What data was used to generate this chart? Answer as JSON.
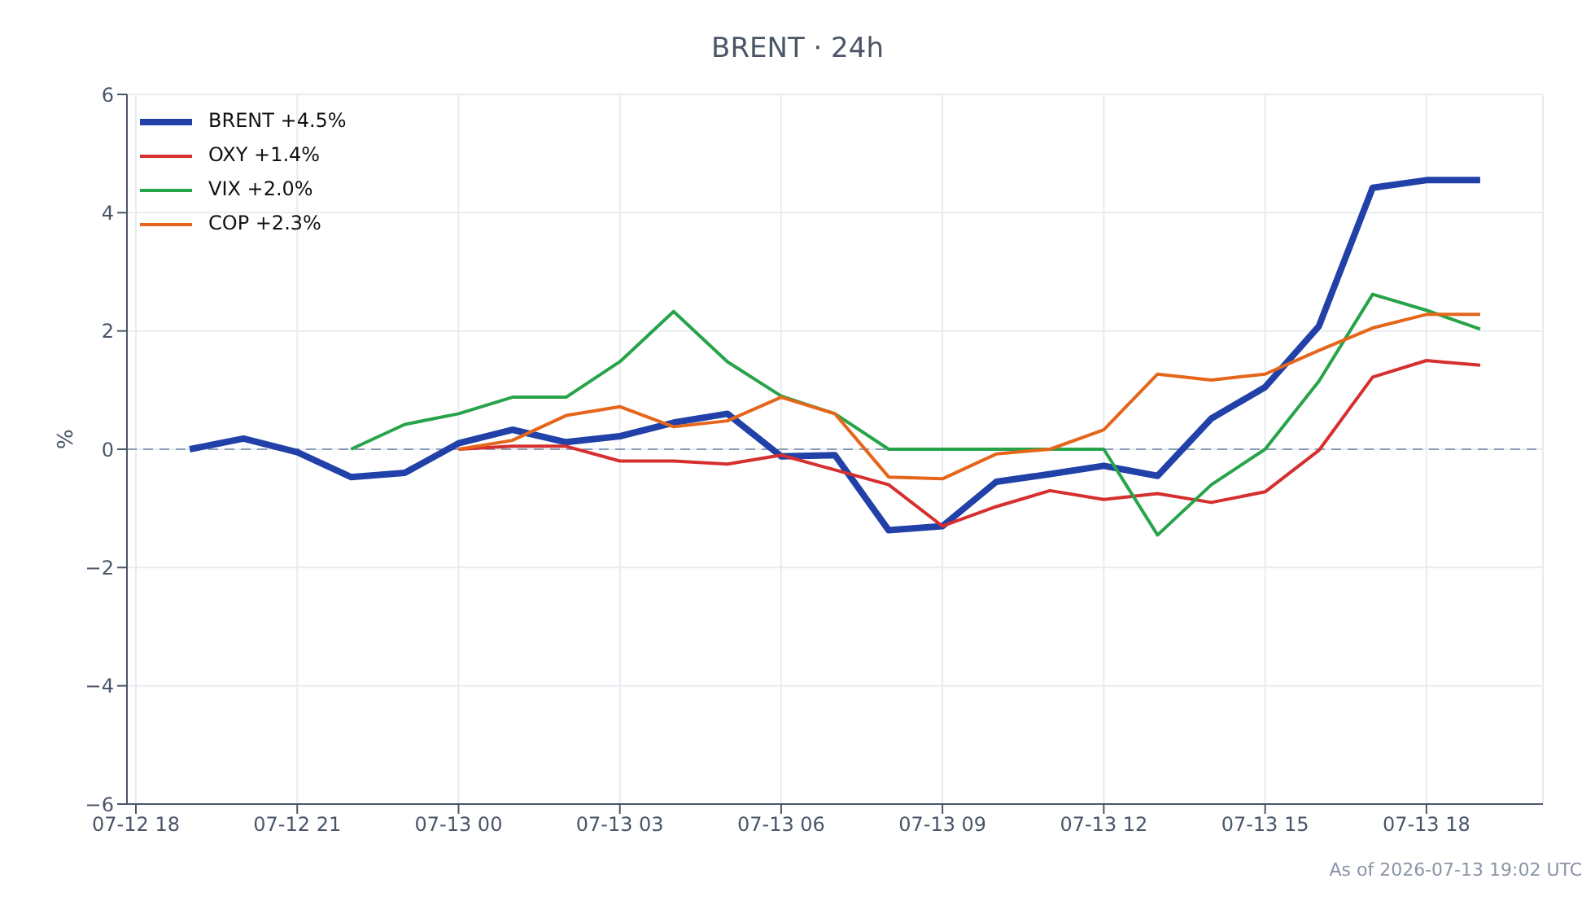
{
  "chart_data": {
    "type": "line",
    "title": "BRENT · 24h",
    "ylabel": "%",
    "x": [
      "2026-07-12T19:00",
      "2026-07-12T20:00",
      "2026-07-12T21:00",
      "2026-07-12T22:00",
      "2026-07-12T23:00",
      "2026-07-13T00:00",
      "2026-07-13T01:00",
      "2026-07-13T02:00",
      "2026-07-13T03:00",
      "2026-07-13T04:00",
      "2026-07-13T05:00",
      "2026-07-13T06:00",
      "2026-07-13T07:00",
      "2026-07-13T08:00",
      "2026-07-13T09:00",
      "2026-07-13T10:00",
      "2026-07-13T11:00",
      "2026-07-13T12:00",
      "2026-07-13T13:00",
      "2026-07-13T14:00",
      "2026-07-13T15:00",
      "2026-07-13T16:00",
      "2026-07-13T17:00",
      "2026-07-13T18:00",
      "2026-07-13T19:00"
    ],
    "series": [
      {
        "name": "BRENT +4.5%",
        "color": "#2141a8",
        "values": [
          0,
          0.18,
          -0.05,
          -0.47,
          -0.4,
          0.1,
          0.33,
          0.12,
          0.22,
          0.45,
          0.6,
          -0.12,
          -0.1,
          -1.37,
          -1.3,
          -0.55,
          -0.42,
          -0.28,
          -0.45,
          0.52,
          1.05,
          2.08,
          4.42,
          4.55,
          4.55
        ]
      },
      {
        "name": "OXY +1.4%",
        "color": "#d62f2f",
        "values": [
          null,
          null,
          null,
          null,
          null,
          0,
          0.05,
          0.05,
          -0.2,
          -0.2,
          -0.25,
          -0.1,
          -0.35,
          -0.6,
          -1.3,
          -0.97,
          -0.7,
          -0.85,
          -0.75,
          -0.9,
          -0.72,
          -0.02,
          1.22,
          1.5,
          1.42
        ]
      },
      {
        "name": "VIX +2.0%",
        "color": "#27a34a",
        "values": [
          null,
          null,
          null,
          0,
          0.42,
          0.6,
          0.88,
          0.88,
          1.48,
          2.33,
          1.48,
          0.9,
          0.6,
          0,
          0,
          0,
          0,
          0,
          -1.45,
          -0.6,
          0,
          1.15,
          2.62,
          2.35,
          2.03
        ]
      },
      {
        "name": "COP +2.3%",
        "color": "#e5661a",
        "values": [
          null,
          null,
          null,
          null,
          null,
          0,
          0.15,
          0.57,
          0.72,
          0.38,
          0.48,
          0.88,
          0.6,
          -0.47,
          -0.5,
          -0.08,
          0,
          0.33,
          1.27,
          1.17,
          1.27,
          1.67,
          2.05,
          2.28,
          2.28
        ]
      }
    ],
    "xlim": [
      "2026-07-12T17:50",
      "2026-07-13T20:10"
    ],
    "xticks": [
      {
        "value": "2026-07-12T18:00",
        "label": "07-12 18"
      },
      {
        "value": "2026-07-12T21:00",
        "label": "07-12 21"
      },
      {
        "value": "2026-07-13T00:00",
        "label": "07-13 00"
      },
      {
        "value": "2026-07-13T03:00",
        "label": "07-13 03"
      },
      {
        "value": "2026-07-13T06:00",
        "label": "07-13 06"
      },
      {
        "value": "2026-07-13T09:00",
        "label": "07-13 09"
      },
      {
        "value": "2026-07-13T12:00",
        "label": "07-13 12"
      },
      {
        "value": "2026-07-13T15:00",
        "label": "07-13 15"
      },
      {
        "value": "2026-07-13T18:00",
        "label": "07-13 18"
      }
    ],
    "ylim": [
      -6,
      6
    ],
    "yticks": [
      -6,
      -4,
      -2,
      0,
      2,
      4,
      6
    ],
    "ref_lines": [
      {
        "axis": "y",
        "value": 0,
        "color": "#8a9bb5",
        "line_style": "dashed"
      }
    ],
    "grid": true,
    "legend": "top left",
    "marker": "none",
    "line_style": "solid",
    "annotations": [
      "As of 2026-07-13 19:02 UTC"
    ]
  }
}
